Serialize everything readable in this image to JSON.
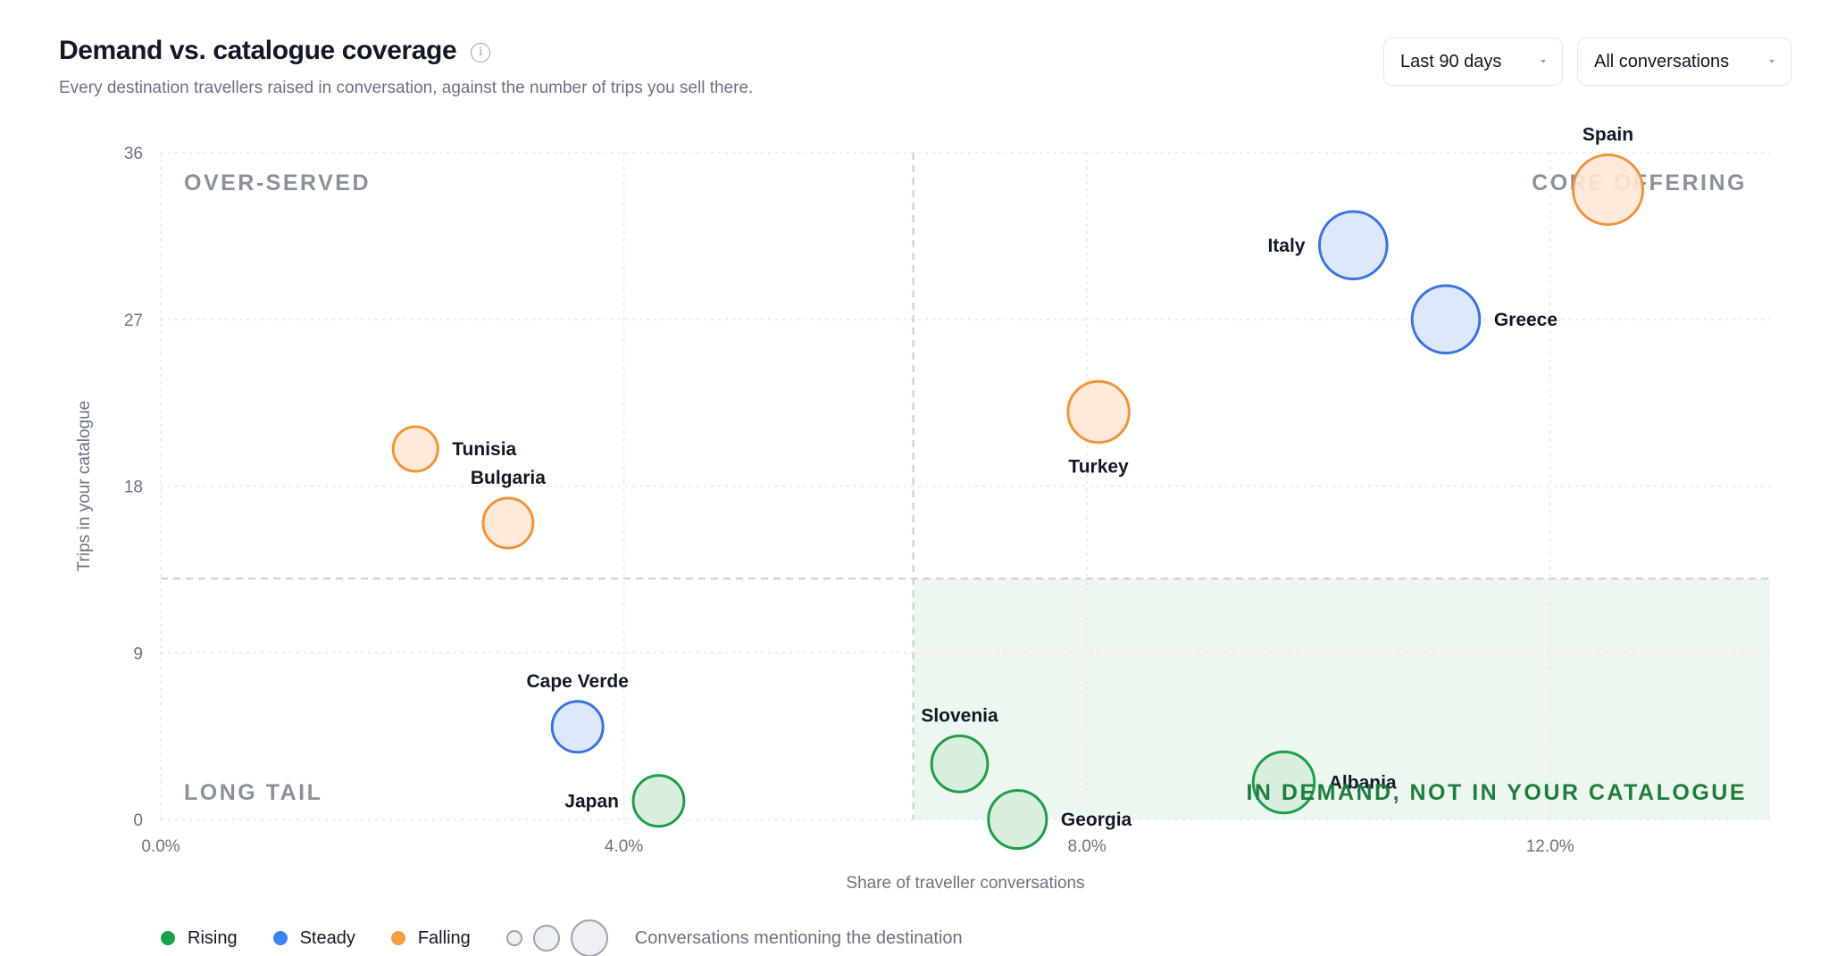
{
  "header": {
    "title": "Demand vs. catalogue coverage",
    "info_icon": "info-icon",
    "subtitle": "Every destination travellers raised in conversation, against the number of trips you sell there."
  },
  "controls": {
    "range": "Last 90 days",
    "filter": "All conversations"
  },
  "legend": {
    "items": [
      {
        "label": "Rising",
        "color": "#16a34a"
      },
      {
        "label": "Steady",
        "color": "#3b82f6"
      },
      {
        "label": "Falling",
        "color": "#f59e42"
      }
    ],
    "size_label": "Conversations mentioning the destination"
  },
  "chart_data": {
    "type": "scatter",
    "variant": "bubble",
    "xlabel": "Share of traveller conversations",
    "ylabel": "Trips in your catalogue",
    "xlim": [
      0,
      13.9
    ],
    "ylim": [
      0,
      36
    ],
    "x_ticks": [
      0,
      4,
      8,
      12
    ],
    "x_tick_labels": [
      "0.0%",
      "4.0%",
      "8.0%",
      "12.0%"
    ],
    "y_ticks": [
      0,
      9,
      18,
      27,
      36
    ],
    "y_tick_labels": [
      "0",
      "9",
      "18",
      "27",
      "36"
    ],
    "grid": true,
    "thresholds": {
      "x": 6.5,
      "y": 13
    },
    "quadrants": {
      "top_left": "OVER-SERVED",
      "top_right": "CORE OFFERING",
      "bottom_left": "LONG TAIL",
      "bottom_right": "IN DEMAND, NOT IN YOUR CATALOGUE"
    },
    "trend_colors": {
      "Rising": {
        "stroke": "#1e9e4a",
        "fill": "#d5ecdb"
      },
      "Steady": {
        "stroke": "#3b74e0",
        "fill": "#d9e5fb"
      },
      "Falling": {
        "stroke": "#f0953a",
        "fill": "#fde8d6"
      }
    },
    "points": [
      {
        "name": "Spain",
        "x": 12.5,
        "y": 34,
        "size": 1.0,
        "trend": "Falling",
        "label_pos": "top"
      },
      {
        "name": "Italy",
        "x": 10.3,
        "y": 31,
        "size": 0.93,
        "trend": "Steady",
        "label_pos": "left"
      },
      {
        "name": "Greece",
        "x": 11.1,
        "y": 27,
        "size": 0.93,
        "trend": "Steady",
        "label_pos": "right"
      },
      {
        "name": "Turkey",
        "x": 8.1,
        "y": 22,
        "size": 0.72,
        "trend": "Falling",
        "label_pos": "bottom"
      },
      {
        "name": "Tunisia",
        "x": 2.2,
        "y": 20,
        "size": 0.18,
        "trend": "Falling",
        "label_pos": "right"
      },
      {
        "name": "Bulgaria",
        "x": 3.0,
        "y": 16,
        "size": 0.35,
        "trend": "Falling",
        "label_pos": "top"
      },
      {
        "name": "Cape Verde",
        "x": 3.6,
        "y": 5,
        "size": 0.38,
        "trend": "Steady",
        "label_pos": "top"
      },
      {
        "name": "Japan",
        "x": 4.3,
        "y": 1,
        "size": 0.38,
        "trend": "Rising",
        "label_pos": "left"
      },
      {
        "name": "Slovenia",
        "x": 6.9,
        "y": 3,
        "size": 0.55,
        "trend": "Rising",
        "label_pos": "top"
      },
      {
        "name": "Georgia",
        "x": 7.4,
        "y": 0,
        "size": 0.62,
        "trend": "Rising",
        "label_pos": "right"
      },
      {
        "name": "Albania",
        "x": 9.7,
        "y": 2,
        "size": 0.72,
        "trend": "Rising",
        "label_pos": "right"
      }
    ]
  }
}
